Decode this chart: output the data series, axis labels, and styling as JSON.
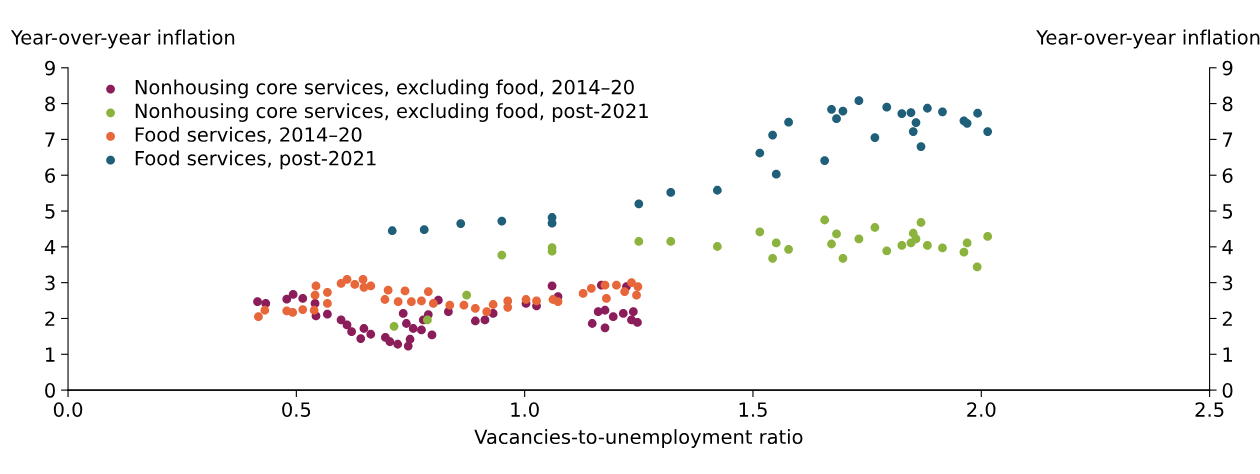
{
  "chart_data": {
    "type": "scatter",
    "ylabel": "Year-over-year inflation",
    "y2label": "Year-over-year inflation",
    "xlabel": "Vacancies-to-unemployment ratio",
    "xlim": [
      0,
      2.5
    ],
    "xticks": [
      {
        "value": 0,
        "label": "0.0"
      },
      {
        "value": 0.5,
        "label": "0.5"
      },
      {
        "value": 1,
        "label": "1.0"
      },
      {
        "value": 1.5,
        "label": "1.5"
      },
      {
        "value": 2,
        "label": "2.0"
      },
      {
        "value": 2.5,
        "label": "2.5"
      }
    ],
    "ylim": [
      0,
      9
    ],
    "yticks": [
      0,
      1,
      2,
      3,
      4,
      5,
      6,
      7,
      8,
      9
    ],
    "y2lim": [
      0,
      9
    ],
    "y2ticks": [
      0,
      1,
      2,
      3,
      4,
      5,
      6,
      7,
      8,
      9
    ],
    "grid": false,
    "legend": "top left",
    "marker": "circle",
    "series": [
      {
        "name": "Nonhousing core services, excluding food, 2014–20",
        "color": "#8b1e5a",
        "x": [
          0.415,
          0.433,
          0.479,
          0.493,
          0.514,
          0.541,
          0.543,
          0.568,
          0.598,
          0.611,
          0.621,
          0.641,
          0.648,
          0.663,
          0.695,
          0.705,
          0.722,
          0.745,
          0.749,
          0.756,
          0.741,
          0.734,
          0.774,
          0.778,
          0.789,
          0.797,
          0.811,
          0.833,
          0.892,
          0.913,
          0.931,
          1.003,
          1.026,
          1.06,
          1.073,
          1.148,
          1.176,
          1.161,
          1.168,
          1.176,
          1.194,
          1.216,
          1.238,
          1.234,
          1.247,
          1.223
        ],
        "values": [
          2.47,
          2.42,
          2.54,
          2.67,
          2.56,
          2.42,
          2.07,
          2.12,
          1.96,
          1.82,
          1.63,
          1.44,
          1.72,
          1.56,
          1.47,
          1.35,
          1.28,
          1.23,
          1.42,
          1.72,
          1.86,
          2.14,
          1.68,
          1.96,
          2.11,
          1.54,
          2.51,
          2.19,
          1.93,
          1.96,
          2.14,
          2.42,
          2.35,
          2.91,
          2.61,
          1.86,
          1.74,
          2.19,
          2.93,
          2.23,
          2.05,
          2.14,
          2.19,
          1.96,
          1.89,
          2.89
        ]
      },
      {
        "name": "Nonhousing core services, excluding food, post-2021",
        "color": "#8db33f",
        "x": [
          0.714,
          0.787,
          0.873,
          0.95,
          1.06,
          1.06,
          1.25,
          1.32,
          1.422,
          1.515,
          1.551,
          1.543,
          1.578,
          1.657,
          1.683,
          1.672,
          1.697,
          1.732,
          1.767,
          1.793,
          1.826,
          1.846,
          1.851,
          1.857,
          1.868,
          1.882,
          1.915,
          1.962,
          1.969,
          1.991,
          2.014
        ],
        "values": [
          1.78,
          1.96,
          2.65,
          3.77,
          3.98,
          3.88,
          4.15,
          4.15,
          4.01,
          4.42,
          4.11,
          3.68,
          3.93,
          4.75,
          4.36,
          4.08,
          3.68,
          4.22,
          4.54,
          3.89,
          4.04,
          4.11,
          4.38,
          4.22,
          4.68,
          4.04,
          3.97,
          3.85,
          4.11,
          3.44,
          4.29
        ]
      },
      {
        "name": "Food services, 2014–20",
        "color": "#e8673a",
        "x": [
          0.417,
          0.431,
          0.479,
          0.492,
          0.514,
          0.539,
          0.541,
          0.543,
          0.568,
          0.568,
          0.598,
          0.611,
          0.628,
          0.646,
          0.648,
          0.663,
          0.701,
          0.694,
          0.723,
          0.738,
          0.752,
          0.774,
          0.789,
          0.8,
          0.836,
          0.867,
          0.892,
          0.917,
          0.931,
          0.963,
          0.963,
          1.003,
          1.026,
          1.062,
          1.073,
          1.128,
          1.146,
          1.176,
          1.179,
          1.201,
          1.234,
          1.245,
          1.248,
          1.219
        ],
        "values": [
          2.05,
          2.23,
          2.21,
          2.17,
          2.25,
          2.23,
          2.65,
          2.91,
          2.73,
          2.42,
          2.98,
          3.09,
          2.95,
          3.09,
          2.87,
          2.91,
          2.79,
          2.53,
          2.47,
          2.77,
          2.47,
          2.49,
          2.75,
          2.42,
          2.37,
          2.37,
          2.28,
          2.19,
          2.39,
          2.49,
          2.31,
          2.53,
          2.49,
          2.53,
          2.47,
          2.7,
          2.84,
          2.93,
          2.56,
          2.93,
          3.0,
          2.65,
          2.89,
          2.75
        ]
      },
      {
        "name": "Food services, post-2021",
        "color": "#1f5f7a",
        "x": [
          0.71,
          0.78,
          0.86,
          0.95,
          1.06,
          1.06,
          1.25,
          1.32,
          1.422,
          1.515,
          1.543,
          1.551,
          1.578,
          1.657,
          1.672,
          1.683,
          1.697,
          1.732,
          1.767,
          1.793,
          1.826,
          1.846,
          1.857,
          1.851,
          1.868,
          1.882,
          1.915,
          1.962,
          1.969,
          1.992,
          2.014
        ],
        "values": [
          4.45,
          4.48,
          4.65,
          4.72,
          4.82,
          4.66,
          5.2,
          5.52,
          5.58,
          6.62,
          7.12,
          6.03,
          7.48,
          6.41,
          7.84,
          7.58,
          7.79,
          8.08,
          7.05,
          7.9,
          7.72,
          7.75,
          7.47,
          7.22,
          6.8,
          7.87,
          7.77,
          7.52,
          7.45,
          7.73,
          7.22
        ]
      }
    ]
  }
}
